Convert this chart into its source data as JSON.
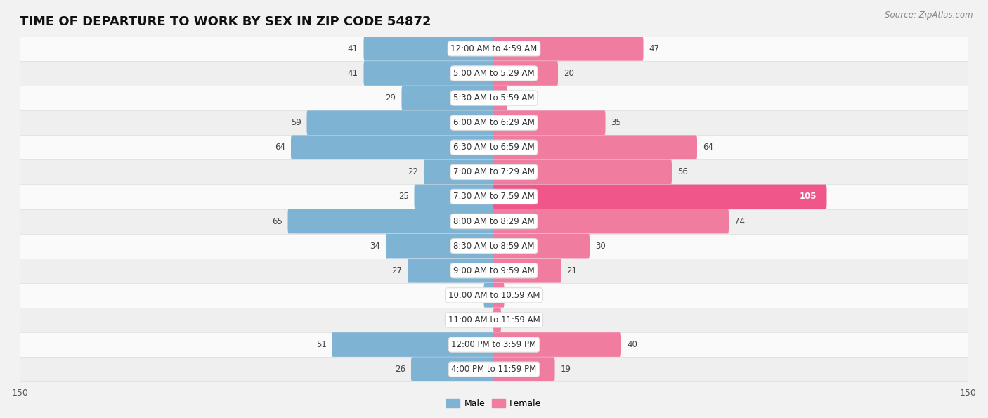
{
  "title": "TIME OF DEPARTURE TO WORK BY SEX IN ZIP CODE 54872",
  "source": "Source: ZipAtlas.com",
  "categories": [
    "12:00 AM to 4:59 AM",
    "5:00 AM to 5:29 AM",
    "5:30 AM to 5:59 AM",
    "6:00 AM to 6:29 AM",
    "6:30 AM to 6:59 AM",
    "7:00 AM to 7:29 AM",
    "7:30 AM to 7:59 AM",
    "8:00 AM to 8:29 AM",
    "8:30 AM to 8:59 AM",
    "9:00 AM to 9:59 AM",
    "10:00 AM to 10:59 AM",
    "11:00 AM to 11:59 AM",
    "12:00 PM to 3:59 PM",
    "4:00 PM to 11:59 PM"
  ],
  "male": [
    41,
    41,
    29,
    59,
    64,
    22,
    25,
    65,
    34,
    27,
    3,
    0,
    51,
    26
  ],
  "female": [
    47,
    20,
    4,
    35,
    64,
    56,
    105,
    74,
    30,
    21,
    3,
    2,
    40,
    19
  ],
  "male_color": "#7fb3d3",
  "female_color": "#f07ca0",
  "female_bright_color": "#f0568a",
  "bg_color": "#f2f2f2",
  "row_bg_even": "#fafafa",
  "row_bg_odd": "#efefef",
  "row_border": "#e0e0e0",
  "max_val": 150,
  "bar_height": 0.52,
  "title_fontsize": 13,
  "label_fontsize": 8.5,
  "value_fontsize": 8.5,
  "tick_fontsize": 9,
  "source_fontsize": 8.5
}
